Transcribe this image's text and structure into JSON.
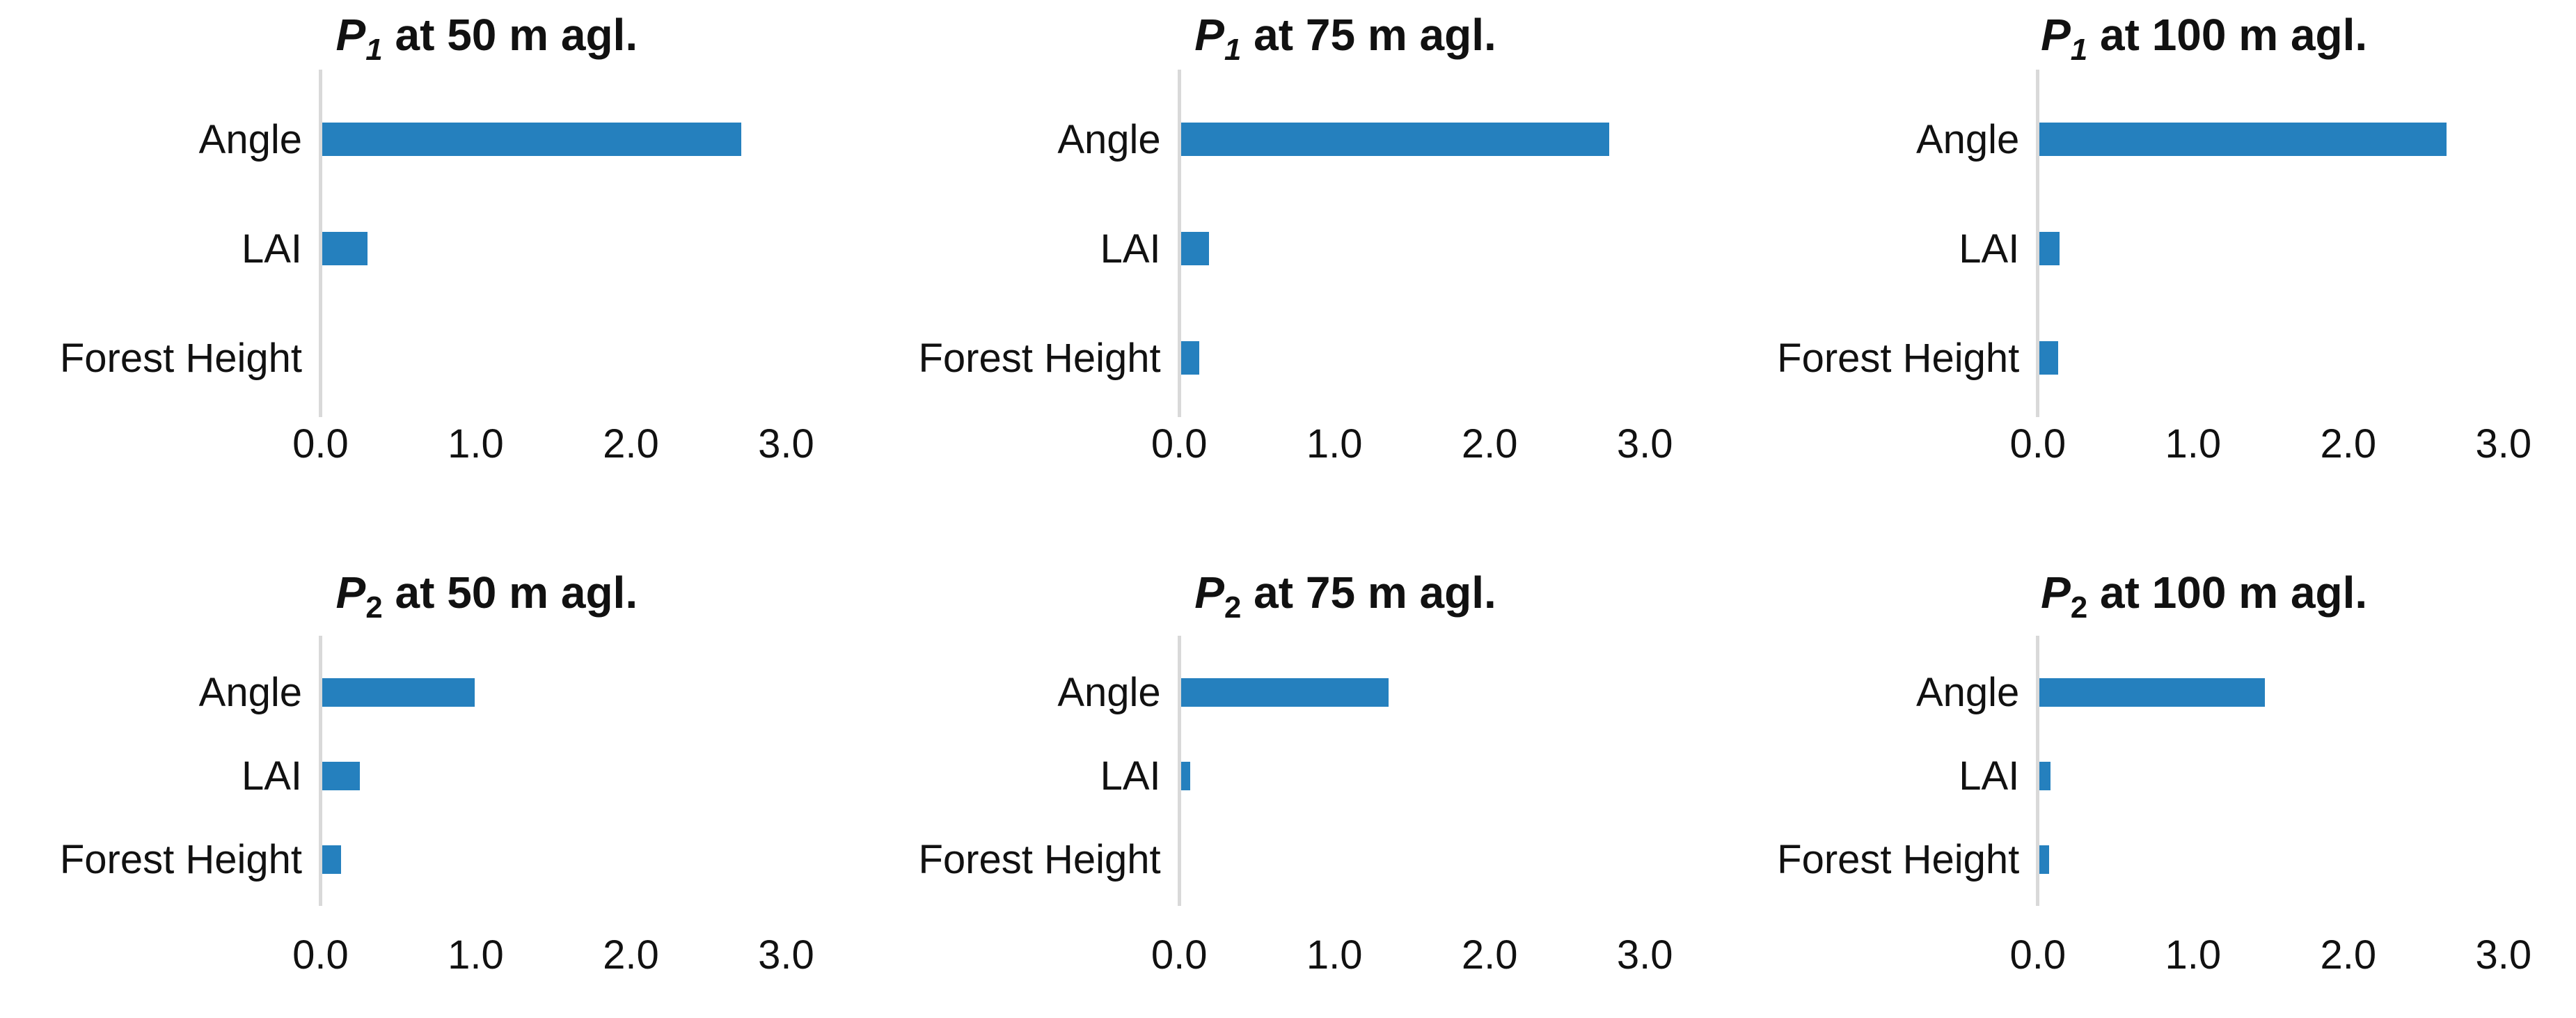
{
  "figure": {
    "description": "Sensitivity of parameters P1 and P2 at three heights above ground level",
    "grid": {
      "rows": 2,
      "cols": 3
    }
  },
  "colors": {
    "bar": "#2580BE",
    "axis_line": "#D9D9D9",
    "text": "#111111",
    "background": "#FFFFFF"
  },
  "x_axis": {
    "ticks": [
      "0.0",
      "1.0",
      "2.0",
      "3.0"
    ],
    "tick_values": [
      0.0,
      1.0,
      2.0,
      3.0
    ],
    "min": 0.0,
    "max": 3.0,
    "gridlines": false
  },
  "chart_data": [
    {
      "type": "bar",
      "orientation": "horizontal",
      "title": "P1 at 50 m agl.",
      "title_parts": {
        "symbol": "P",
        "subscript": "1",
        "subscript_italic": true,
        "rest": " at 50 m agl."
      },
      "categories": [
        "Angle",
        "LAI",
        "Forest Height"
      ],
      "values": [
        2.7,
        0.29,
        0.0
      ],
      "xlim": [
        0.0,
        3.0
      ],
      "row": "top"
    },
    {
      "type": "bar",
      "orientation": "horizontal",
      "title": "P1 at 75 m agl.",
      "title_parts": {
        "symbol": "P",
        "subscript": "1",
        "subscript_italic": true,
        "rest": " at 75 m agl."
      },
      "categories": [
        "Angle",
        "LAI",
        "Forest Height"
      ],
      "values": [
        2.76,
        0.18,
        0.12
      ],
      "xlim": [
        0.0,
        3.0
      ],
      "row": "top"
    },
    {
      "type": "bar",
      "orientation": "horizontal",
      "title": "P1 at 100 m agl.",
      "title_parts": {
        "symbol": "P",
        "subscript": "1",
        "subscript_italic": true,
        "rest": " at 100 m agl."
      },
      "categories": [
        "Angle",
        "LAI",
        "Forest Height"
      ],
      "values": [
        2.62,
        0.13,
        0.12
      ],
      "xlim": [
        0.0,
        3.0
      ],
      "row": "top"
    },
    {
      "type": "bar",
      "orientation": "horizontal",
      "title": "P2 at 50 m agl.",
      "title_parts": {
        "symbol": "P",
        "subscript": "2",
        "subscript_italic": false,
        "rest": " at 50 m agl."
      },
      "categories": [
        "Angle",
        "LAI",
        "Forest Height"
      ],
      "values": [
        0.98,
        0.24,
        0.12
      ],
      "xlim": [
        0.0,
        3.0
      ],
      "row": "bottom"
    },
    {
      "type": "bar",
      "orientation": "horizontal",
      "title": "P2 at 75 m agl.",
      "title_parts": {
        "symbol": "P",
        "subscript": "2",
        "subscript_italic": false,
        "rest": " at 75 m agl."
      },
      "categories": [
        "Angle",
        "LAI",
        "Forest Height"
      ],
      "values": [
        1.34,
        0.06,
        0.0
      ],
      "xlim": [
        0.0,
        3.0
      ],
      "row": "bottom"
    },
    {
      "type": "bar",
      "orientation": "horizontal",
      "title": "P2 at 100 m agl.",
      "title_parts": {
        "symbol": "P",
        "subscript": "2",
        "subscript_italic": false,
        "rest": " at 100 m agl."
      },
      "categories": [
        "Angle",
        "LAI",
        "Forest Height"
      ],
      "values": [
        1.45,
        0.07,
        0.06
      ],
      "xlim": [
        0.0,
        3.0
      ],
      "row": "bottom"
    }
  ]
}
